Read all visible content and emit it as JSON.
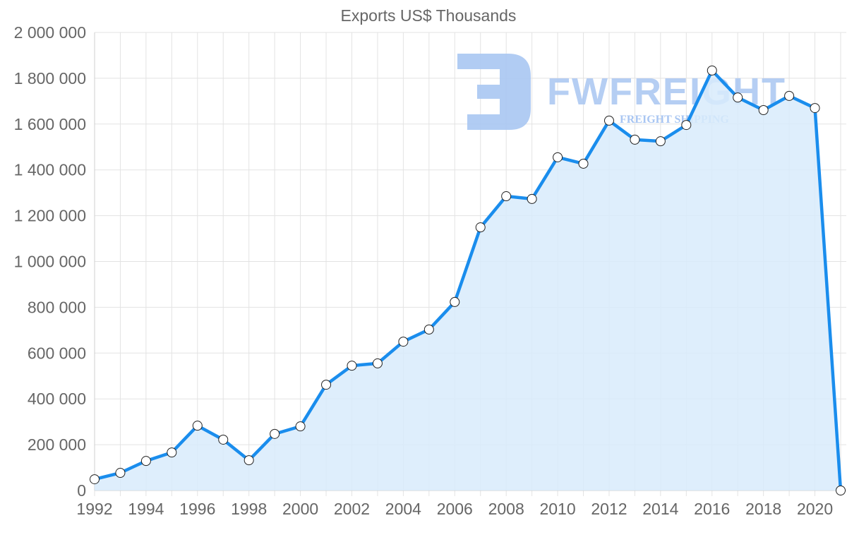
{
  "chart_data": {
    "type": "area",
    "title": "Exports US$ Thousands",
    "xlabel": "",
    "ylabel": "",
    "ylim": [
      0,
      2000000
    ],
    "yticks": [
      0,
      200000,
      400000,
      600000,
      800000,
      1000000,
      1200000,
      1400000,
      1600000,
      1800000,
      2000000
    ],
    "ytick_labels": [
      "0",
      "200 000",
      "400 000",
      "600 000",
      "800 000",
      "1 000 000",
      "1 200 000",
      "1 400 000",
      "1 600 000",
      "1 800 000",
      "2 000 000"
    ],
    "xtick_labels": [
      "1992",
      "1994",
      "1996",
      "1998",
      "2000",
      "2002",
      "2004",
      "2006",
      "2008",
      "2010",
      "2012",
      "2014",
      "2016",
      "2018",
      "2020"
    ],
    "grid": true,
    "legend": null,
    "categories": [
      1992,
      1993,
      1994,
      1995,
      1996,
      1997,
      1998,
      1999,
      2000,
      2001,
      2002,
      2003,
      2004,
      2005,
      2006,
      2007,
      2008,
      2009,
      2010,
      2011,
      2012,
      2013,
      2014,
      2015,
      2016,
      2017,
      2018,
      2019,
      2020,
      2021
    ],
    "series": [
      {
        "name": "Exports US$ Thousands",
        "values": [
          49000,
          77000,
          129000,
          166000,
          283000,
          222000,
          132000,
          247000,
          280000,
          462000,
          545000,
          555000,
          650000,
          703000,
          823000,
          1149000,
          1285000,
          1273000,
          1455000,
          1427000,
          1615000,
          1532000,
          1525000,
          1596000,
          1834000,
          1716000,
          1661000,
          1723000,
          1670000,
          0
        ]
      }
    ],
    "colors": {
      "line": "#1a8ded",
      "fill": "#d8ebfc",
      "grid": "#e3e3e3",
      "axis_text": "#666666",
      "marker_fill": "#ffffff",
      "marker_stroke": "#222222"
    }
  },
  "watermark": {
    "brand": "FWFREIGHT",
    "tagline": "FREIGHT SHIPPING",
    "color": "#a9c6f2"
  }
}
